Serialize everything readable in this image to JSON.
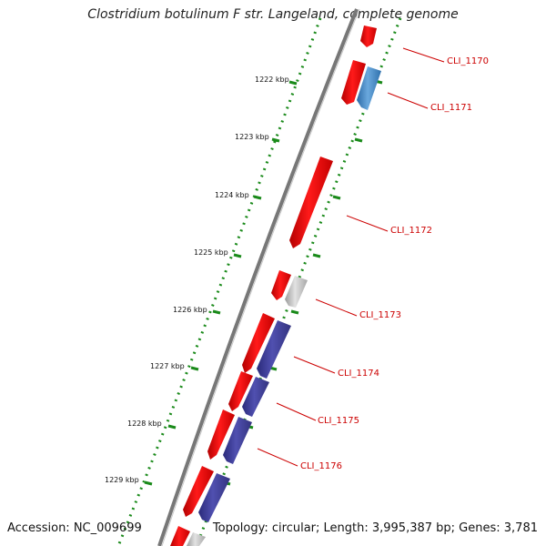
{
  "title": "Clostridium botulinum F str. Langeland, complete genome",
  "footer": {
    "accession": "Accession: NC_009699",
    "summary": "Topology: circular; Length: 3,995,387 bp; Genes: 3,781"
  },
  "ticks": [
    "1222 kbp",
    "1223 kbp",
    "1224 kbp",
    "1225 kbp",
    "1226 kbp",
    "1227 kbp",
    "1228 kbp",
    "1229 kbp"
  ],
  "genes": [
    "CLI_1170",
    "CLI_1171",
    "CLI_1172",
    "CLI_1173",
    "CLI_1174",
    "CLI_1175",
    "CLI_1176"
  ],
  "colors": {
    "cds_forward": "#ff0000",
    "cds_reverse": "#3f3f99",
    "highlight_blue": "#3b7fc0",
    "gray_feature": "#c8c8c8",
    "dotted_track": "#1a8a1a",
    "backbone": "#777777",
    "label": "#cc0000"
  }
}
